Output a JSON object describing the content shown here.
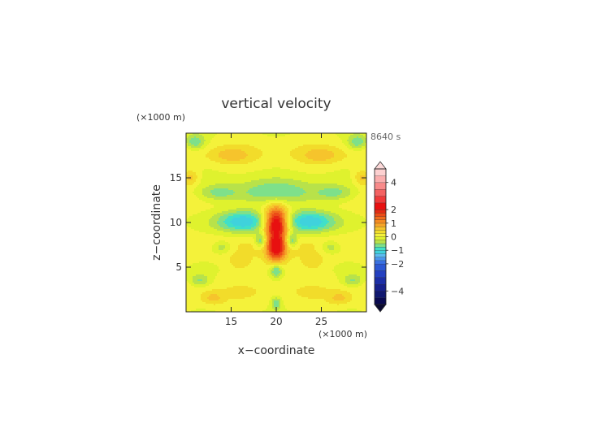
{
  "chart_data": {
    "type": "heatmap",
    "title": "vertical velocity",
    "time_label": "8640 s",
    "xlabel": "x−coordinate",
    "ylabel": "z−coordinate",
    "x_unit": "(×1000 m)",
    "y_unit": "(×1000 m)",
    "xlim": [
      10,
      30
    ],
    "ylim": [
      0,
      20
    ],
    "xticks": [
      15,
      20,
      25
    ],
    "yticks": [
      5,
      10,
      15
    ],
    "colorbar": {
      "levels": [
        -5,
        -4.5,
        -4,
        -3.5,
        -3,
        -2.5,
        -2,
        -1.75,
        -1.5,
        -1.25,
        -1,
        -0.75,
        -0.5,
        -0.25,
        0,
        0.25,
        0.5,
        0.75,
        1,
        1.25,
        1.5,
        1.75,
        2,
        2.5,
        3,
        3.5,
        4,
        4.5,
        5
      ],
      "colors": [
        "#0a0a50",
        "#101870",
        "#16208c",
        "#1c2ea6",
        "#2440c0",
        "#2c58d4",
        "#3a72e4",
        "#4a96ee",
        "#5cbcf2",
        "#3fd2dc",
        "#40e0c8",
        "#7ee08a",
        "#b8e24a",
        "#dff22e",
        "#f4f23a",
        "#f2dc2a",
        "#f6c42c",
        "#f6a428",
        "#f48a22",
        "#f06c1c",
        "#ec4c18",
        "#e62a14",
        "#e81010",
        "#f03a3a",
        "#f46262",
        "#f88a8a",
        "#faaeae",
        "#fcd0d0"
      ],
      "tick_labels": [
        "4",
        "2",
        "1",
        "0",
        "−1",
        "−2",
        "−4"
      ],
      "tick_values": [
        4,
        2,
        1,
        0,
        -1,
        -2,
        -4
      ],
      "extend": "both"
    },
    "features": [
      {
        "x": 20.0,
        "z": 10.0,
        "value": 2.2,
        "sx": 0.9,
        "sz": 1.2
      },
      {
        "x": 20.0,
        "z": 7.0,
        "value": 1.6,
        "sx": 0.7,
        "sz": 1.0
      },
      {
        "x": 20.0,
        "z": 8.5,
        "value": 0.6,
        "sx": 1.2,
        "sz": 2.4
      },
      {
        "x": 16.3,
        "z": 10.1,
        "value": -1.3,
        "sx": 2.0,
        "sz": 0.9
      },
      {
        "x": 23.7,
        "z": 10.1,
        "value": -1.3,
        "sx": 2.0,
        "sz": 0.9
      },
      {
        "x": 20.0,
        "z": 13.3,
        "value": -0.95,
        "sx": 4.0,
        "sz": 1.0
      },
      {
        "x": 18.3,
        "z": 8.0,
        "value": -1.0,
        "sx": 0.45,
        "sz": 0.6
      },
      {
        "x": 21.7,
        "z": 8.0,
        "value": -1.0,
        "sx": 0.45,
        "sz": 0.6
      },
      {
        "x": 20.0,
        "z": 4.6,
        "value": -0.9,
        "sx": 0.5,
        "sz": 0.6
      },
      {
        "x": 20.0,
        "z": 1.0,
        "value": -0.8,
        "sx": 0.4,
        "sz": 0.5
      },
      {
        "x": 14.0,
        "z": 7.2,
        "value": -0.55,
        "sx": 0.8,
        "sz": 0.5
      },
      {
        "x": 26.0,
        "z": 7.2,
        "value": -0.55,
        "sx": 0.8,
        "sz": 0.5
      },
      {
        "x": 13.5,
        "z": 13.3,
        "value": -0.55,
        "sx": 1.5,
        "sz": 0.6
      },
      {
        "x": 26.5,
        "z": 13.3,
        "value": -0.55,
        "sx": 1.5,
        "sz": 0.6
      },
      {
        "x": 11.0,
        "z": 19.0,
        "value": -0.8,
        "sx": 0.8,
        "sz": 0.6
      },
      {
        "x": 29.0,
        "z": 19.0,
        "value": -0.8,
        "sx": 0.8,
        "sz": 0.6
      },
      {
        "x": 11.5,
        "z": 3.5,
        "value": -0.6,
        "sx": 0.8,
        "sz": 0.5
      },
      {
        "x": 28.5,
        "z": 3.5,
        "value": -0.6,
        "sx": 0.8,
        "sz": 0.5
      },
      {
        "x": 15.0,
        "z": 17.5,
        "value": 0.45,
        "sx": 1.5,
        "sz": 0.6
      },
      {
        "x": 25.0,
        "z": 17.5,
        "value": 0.45,
        "sx": 1.5,
        "sz": 0.6
      },
      {
        "x": 10.5,
        "z": 15.0,
        "value": 0.6,
        "sx": 0.6,
        "sz": 0.6
      },
      {
        "x": 29.5,
        "z": 15.0,
        "value": 0.6,
        "sx": 0.6,
        "sz": 0.6
      },
      {
        "x": 13.0,
        "z": 1.5,
        "value": 0.45,
        "sx": 0.8,
        "sz": 0.5
      },
      {
        "x": 27.0,
        "z": 1.5,
        "value": 0.45,
        "sx": 0.8,
        "sz": 0.5
      },
      {
        "x": 16.0,
        "z": 5.5,
        "value": 0.3,
        "sx": 1.0,
        "sz": 0.7
      },
      {
        "x": 24.0,
        "z": 5.5,
        "value": 0.3,
        "sx": 1.0,
        "sz": 0.7
      }
    ]
  }
}
